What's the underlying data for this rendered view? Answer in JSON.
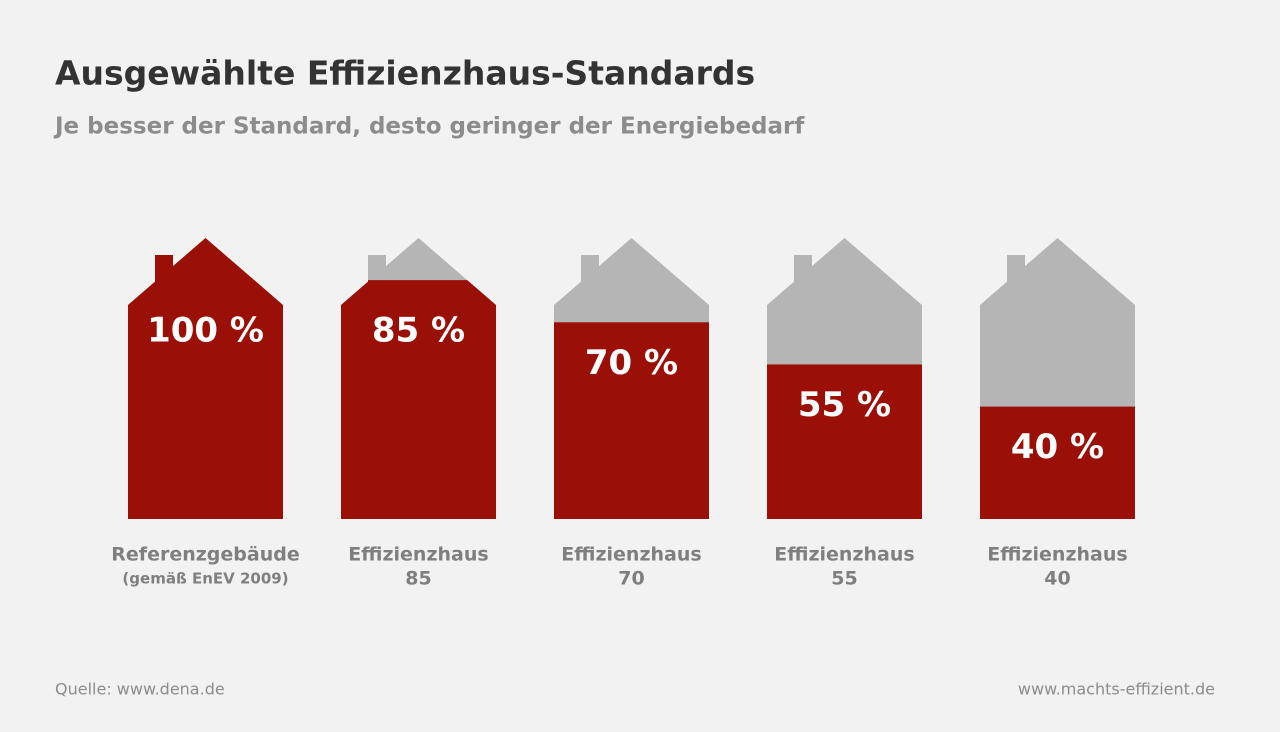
{
  "chart_data": {
    "type": "bar",
    "title": "Ausgewählte Effizienzhaus-Standards",
    "subtitle": "Je besser der Standard, desto geringer der Energiebedarf",
    "categories": [
      [
        "Referenzgebäude",
        "(gemäß EnEV 2009)"
      ],
      [
        "Effizienzhaus",
        "85"
      ],
      [
        "Effizienzhaus",
        "70"
      ],
      [
        "Effizienzhaus",
        "55"
      ],
      [
        "Effizienzhaus",
        "40"
      ]
    ],
    "values": [
      100,
      85,
      70,
      55,
      40
    ],
    "value_labels": [
      "100 %",
      "85 %",
      "70 %",
      "55 %",
      "40 %"
    ],
    "ylim": [
      0,
      100
    ],
    "color": "#9b1006",
    "empty_color": "#b5b5b5",
    "source": "Quelle:  www.dena.de",
    "credit": "www.machts-effizient.de"
  }
}
